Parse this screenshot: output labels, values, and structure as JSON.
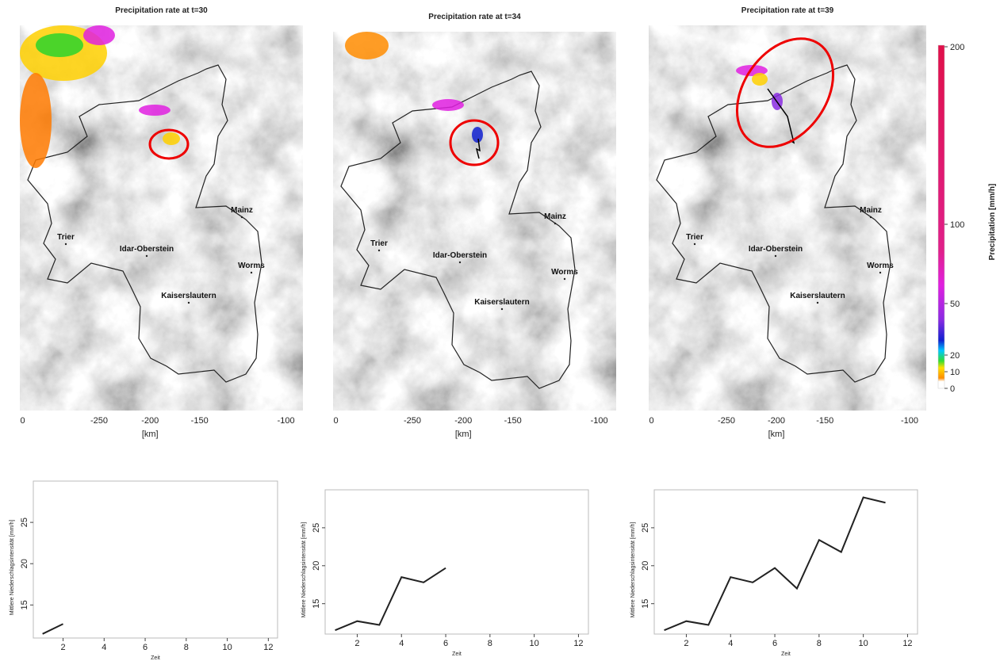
{
  "maps": [
    {
      "title": "Precipitation rate at t=30",
      "xtick_labels": [
        "0",
        "-250",
        "-200",
        "-150",
        "-100"
      ],
      "xlabel": "[km]"
    },
    {
      "title": "Precipitation rate at t=34",
      "xtick_labels": [
        "0",
        "-250",
        "-200",
        "-150",
        "-100"
      ],
      "xlabel": "[km]"
    },
    {
      "title": "Precipitation rate at t=39",
      "xtick_labels": [
        "0",
        "-250",
        "-200",
        "-150",
        "-100"
      ],
      "xlabel": "[km]"
    }
  ],
  "cities": [
    "Mainz",
    "Trier",
    "Idar-Oberstein",
    "Worms",
    "Kaiserslautern"
  ],
  "colorbar": {
    "label": "Precipitation [mm/h]",
    "tick_labels": [
      "200",
      "100",
      "50",
      "20",
      "10",
      "0"
    ]
  },
  "chart_data": [
    {
      "type": "line",
      "xlabel": "Zeit",
      "ylabel": "Mittlere Niederschlagsintensität [mm/h]",
      "x": [
        1,
        2
      ],
      "values": [
        11.5,
        12.7
      ],
      "color": "#222222",
      "xlim": [
        0.55,
        12.45
      ],
      "xticks": [
        2,
        4,
        6,
        8,
        10,
        12
      ],
      "ylim": [
        11.0,
        30.0
      ],
      "yticks": [
        15,
        20,
        25
      ]
    },
    {
      "type": "line",
      "xlabel": "Zeit",
      "ylabel": "Mittlere Niederschlagsintensität [mm/h]",
      "x": [
        1,
        2,
        3,
        4,
        5,
        6
      ],
      "values": [
        11.5,
        12.7,
        12.2,
        18.5,
        17.8,
        19.7
      ],
      "color": "#222222",
      "xlim": [
        0.55,
        12.45
      ],
      "xticks": [
        2,
        4,
        6,
        8,
        10,
        12
      ],
      "ylim": [
        11.0,
        30.0
      ],
      "yticks": [
        15,
        20,
        25
      ]
    },
    {
      "type": "line",
      "xlabel": "Zeit",
      "ylabel": "Mittlere Niederschlagsintensität [mm/h]",
      "x": [
        1,
        2,
        3,
        4,
        5,
        6,
        7,
        8,
        9,
        10,
        11
      ],
      "values": [
        11.5,
        12.7,
        12.2,
        18.5,
        17.8,
        19.7,
        17.0,
        23.4,
        21.8,
        29.0,
        28.3
      ],
      "color": "#222222",
      "xlim": [
        0.55,
        12.45
      ],
      "xticks": [
        2,
        4,
        6,
        8,
        10,
        12
      ],
      "ylim": [
        11.0,
        30.0
      ],
      "yticks": [
        15,
        20,
        25
      ]
    }
  ]
}
